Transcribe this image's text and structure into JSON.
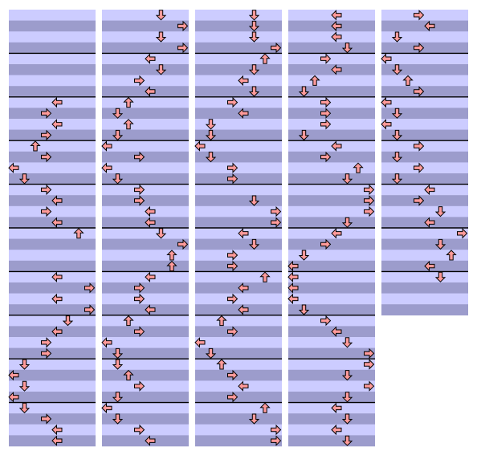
{
  "columns": [
    {
      "measures": 10,
      "notes": [
        [
          8,
          4
        ],
        [
          9,
          3
        ],
        [
          10,
          4
        ],
        [
          11,
          3
        ],
        [
          12,
          2
        ],
        [
          13,
          3
        ],
        [
          14,
          0
        ],
        [
          15,
          1
        ],
        [
          16,
          3
        ],
        [
          17,
          4
        ],
        [
          18,
          3
        ],
        [
          19,
          4
        ],
        [
          20,
          6
        ],
        [
          24,
          4
        ],
        [
          25,
          7
        ],
        [
          26,
          4
        ],
        [
          27,
          7
        ],
        [
          28,
          5
        ],
        [
          29,
          4
        ],
        [
          30,
          3
        ],
        [
          31,
          3
        ],
        [
          32,
          1
        ],
        [
          33,
          0
        ],
        [
          34,
          1
        ],
        [
          35,
          0
        ],
        [
          36,
          1
        ],
        [
          37,
          3
        ],
        [
          38,
          4
        ],
        [
          39,
          4
        ]
      ]
    },
    {
      "measures": 10,
      "notes": [
        [
          0,
          5
        ],
        [
          1,
          7
        ],
        [
          2,
          5
        ],
        [
          3,
          7
        ],
        [
          4,
          4
        ],
        [
          5,
          5
        ],
        [
          6,
          3
        ],
        [
          7,
          4
        ],
        [
          8,
          2
        ],
        [
          9,
          1
        ],
        [
          10,
          2
        ],
        [
          11,
          1
        ],
        [
          12,
          0
        ],
        [
          13,
          3
        ],
        [
          14,
          0
        ],
        [
          15,
          1
        ],
        [
          16,
          3
        ],
        [
          17,
          3
        ],
        [
          18,
          4
        ],
        [
          19,
          4
        ],
        [
          20,
          5
        ],
        [
          21,
          7
        ],
        [
          22,
          6
        ],
        [
          23,
          6
        ],
        [
          24,
          4
        ],
        [
          25,
          3
        ],
        [
          26,
          3
        ],
        [
          27,
          4
        ],
        [
          28,
          2
        ],
        [
          29,
          3
        ],
        [
          30,
          0
        ],
        [
          31,
          1
        ],
        [
          32,
          1
        ],
        [
          33,
          2
        ],
        [
          34,
          3
        ],
        [
          35,
          1
        ],
        [
          36,
          0
        ],
        [
          37,
          1
        ],
        [
          38,
          3
        ],
        [
          39,
          4
        ]
      ]
    },
    {
      "measures": 10,
      "notes": [
        [
          0,
          5
        ],
        [
          1,
          5
        ],
        [
          2,
          5
        ],
        [
          3,
          7
        ],
        [
          4,
          6
        ],
        [
          5,
          5
        ],
        [
          6,
          4
        ],
        [
          7,
          5
        ],
        [
          8,
          3
        ],
        [
          9,
          4
        ],
        [
          10,
          1
        ],
        [
          11,
          1
        ],
        [
          12,
          0
        ],
        [
          13,
          1
        ],
        [
          14,
          3
        ],
        [
          15,
          3
        ],
        [
          17,
          5
        ],
        [
          18,
          7
        ],
        [
          19,
          7
        ],
        [
          20,
          4
        ],
        [
          21,
          5
        ],
        [
          22,
          3
        ],
        [
          23,
          3
        ],
        [
          24,
          6
        ],
        [
          25,
          4
        ],
        [
          26,
          3
        ],
        [
          27,
          4
        ],
        [
          28,
          2
        ],
        [
          29,
          3
        ],
        [
          30,
          0
        ],
        [
          31,
          1
        ],
        [
          32,
          2
        ],
        [
          33,
          3
        ],
        [
          34,
          4
        ],
        [
          35,
          3
        ],
        [
          36,
          6
        ],
        [
          37,
          5
        ],
        [
          38,
          7
        ],
        [
          39,
          7
        ]
      ]
    },
    {
      "measures": 10,
      "notes": [
        [
          0,
          4
        ],
        [
          1,
          4
        ],
        [
          2,
          4
        ],
        [
          3,
          5
        ],
        [
          4,
          3
        ],
        [
          5,
          4
        ],
        [
          6,
          2
        ],
        [
          7,
          1
        ],
        [
          8,
          3
        ],
        [
          9,
          3
        ],
        [
          10,
          3
        ],
        [
          11,
          1
        ],
        [
          12,
          4
        ],
        [
          13,
          3
        ],
        [
          14,
          6
        ],
        [
          15,
          5
        ],
        [
          16,
          7
        ],
        [
          17,
          7
        ],
        [
          18,
          7
        ],
        [
          19,
          5
        ],
        [
          20,
          4
        ],
        [
          21,
          3
        ],
        [
          22,
          1
        ],
        [
          23,
          0
        ],
        [
          24,
          0
        ],
        [
          25,
          0
        ],
        [
          26,
          0
        ],
        [
          27,
          1
        ],
        [
          28,
          3
        ],
        [
          29,
          4
        ],
        [
          30,
          5
        ],
        [
          31,
          7
        ],
        [
          32,
          7
        ],
        [
          33,
          5
        ],
        [
          34,
          7
        ],
        [
          35,
          5
        ],
        [
          36,
          4
        ],
        [
          37,
          5
        ],
        [
          38,
          4
        ],
        [
          39,
          5
        ]
      ]
    },
    {
      "measures": 7,
      "notes": [
        [
          0,
          3
        ],
        [
          1,
          4
        ],
        [
          2,
          1
        ],
        [
          3,
          3
        ],
        [
          4,
          0
        ],
        [
          5,
          1
        ],
        [
          6,
          2
        ],
        [
          7,
          3
        ],
        [
          8,
          0
        ],
        [
          9,
          1
        ],
        [
          10,
          0
        ],
        [
          11,
          1
        ],
        [
          12,
          3
        ],
        [
          13,
          1
        ],
        [
          14,
          3
        ],
        [
          15,
          1
        ],
        [
          16,
          4
        ],
        [
          17,
          3
        ],
        [
          18,
          5
        ],
        [
          19,
          4
        ],
        [
          20,
          7
        ],
        [
          21,
          5
        ],
        [
          22,
          6
        ],
        [
          23,
          4
        ],
        [
          24,
          5
        ]
      ]
    }
  ]
}
